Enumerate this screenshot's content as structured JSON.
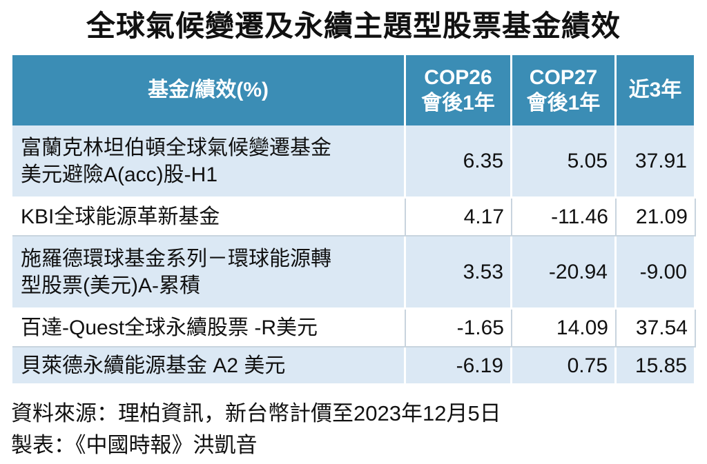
{
  "title": "全球氣候變遷及永續主題型股票基金績效",
  "table": {
    "header": [
      [
        "基金/績效(%)"
      ],
      [
        "COP26",
        "會後1年"
      ],
      [
        "COP27",
        "會後1年"
      ],
      [
        "近3年"
      ]
    ],
    "rows": [
      [
        [
          "富蘭克林坦伯頓全球氣候變遷基金",
          "美元避險A(acc)股-H1"
        ],
        "6.35",
        "5.05",
        "37.91"
      ],
      [
        [
          "KBI全球能源革新基金"
        ],
        "4.17",
        "-11.46",
        "21.09"
      ],
      [
        [
          "施羅德環球基金系列－環球能源轉",
          "型股票(美元)A-累積"
        ],
        "3.53",
        "-20.94",
        "-9.00"
      ],
      [
        [
          "百達-Quest全球永續股票 -R美元"
        ],
        "-1.65",
        "14.09",
        "37.54"
      ],
      [
        [
          "貝萊德永續能源基金 A2 美元"
        ],
        "-6.19",
        "0.75",
        "15.85"
      ]
    ]
  },
  "footer": [
    "資料來源：理柏資訊，新台幣計價至2023年12月5日",
    "製表：《中國時報》洪凱音"
  ]
}
